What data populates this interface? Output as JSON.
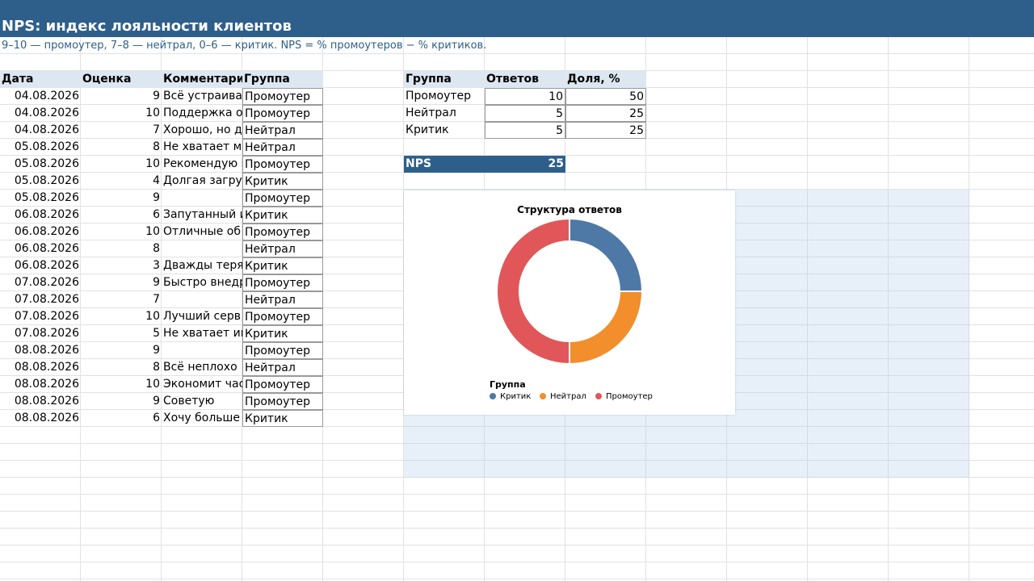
{
  "title": "NPS: индекс лояльности клиентов",
  "subtitle": "9–10 — промоутер, 7–8 — нейтрал, 0–6 — критик. NPS = % промоутеров − % критиков.",
  "responses": {
    "headers": [
      "Дата",
      "Оценка",
      "Комментари",
      "Группа"
    ],
    "rows": [
      [
        "04.08.2026",
        "9",
        "Всё устраивае",
        "Промоутер"
      ],
      [
        "04.08.2026",
        "10",
        "Поддержка от",
        "Промоутер"
      ],
      [
        "04.08.2026",
        "7",
        "Хорошо, но д",
        "Нейтрал"
      ],
      [
        "05.08.2026",
        "8",
        "Не хватает мо",
        "Нейтрал"
      ],
      [
        "05.08.2026",
        "10",
        "Рекомендую к",
        "Промоутер"
      ],
      [
        "05.08.2026",
        "4",
        "Долгая загруз",
        "Критик"
      ],
      [
        "05.08.2026",
        "9",
        "",
        "Промоутер"
      ],
      [
        "06.08.2026",
        "6",
        "Запутанный и",
        "Критик"
      ],
      [
        "06.08.2026",
        "10",
        "Отличные об",
        "Промоутер"
      ],
      [
        "06.08.2026",
        "8",
        "",
        "Нейтрал"
      ],
      [
        "06.08.2026",
        "3",
        "Дважды терял",
        "Критик"
      ],
      [
        "07.08.2026",
        "9",
        "Быстро внедр",
        "Промоутер"
      ],
      [
        "07.08.2026",
        "7",
        "",
        "Нейтрал"
      ],
      [
        "07.08.2026",
        "10",
        "Лучший серв",
        "Промоутер"
      ],
      [
        "07.08.2026",
        "5",
        "Не хватает ин",
        "Критик"
      ],
      [
        "08.08.2026",
        "9",
        "",
        "Промоутер"
      ],
      [
        "08.08.2026",
        "8",
        "Всё неплохо",
        "Нейтрал"
      ],
      [
        "08.08.2026",
        "10",
        "Экономит час",
        "Промоутер"
      ],
      [
        "08.08.2026",
        "9",
        "Советую",
        "Промоутер"
      ],
      [
        "08.08.2026",
        "6",
        "Хочу больше",
        "Критик"
      ]
    ]
  },
  "summary": {
    "headers": [
      "Группа",
      "Ответов",
      "Доля, %"
    ],
    "rows": [
      [
        "Промоутер",
        "10",
        "50"
      ],
      [
        "Нейтрал",
        "5",
        "25"
      ],
      [
        "Критик",
        "5",
        "25"
      ]
    ],
    "nps_label": "NPS",
    "nps_value": "25"
  },
  "chart_data": {
    "type": "pie",
    "style": "donut",
    "title": "Структура ответов",
    "legend_title": "Группа",
    "legend_position": "bottom-left",
    "slices": [
      {
        "label": "Критик",
        "value": 25,
        "color": "#4e79a7"
      },
      {
        "label": "Нейтрал",
        "value": 25,
        "color": "#f28e2b"
      },
      {
        "label": "Промоутер",
        "value": 50,
        "color": "#e15759"
      }
    ]
  },
  "colors": {
    "header_bar": "#2e5f8a",
    "column_header": "#dce7f1",
    "selection": "#e7eff8"
  }
}
